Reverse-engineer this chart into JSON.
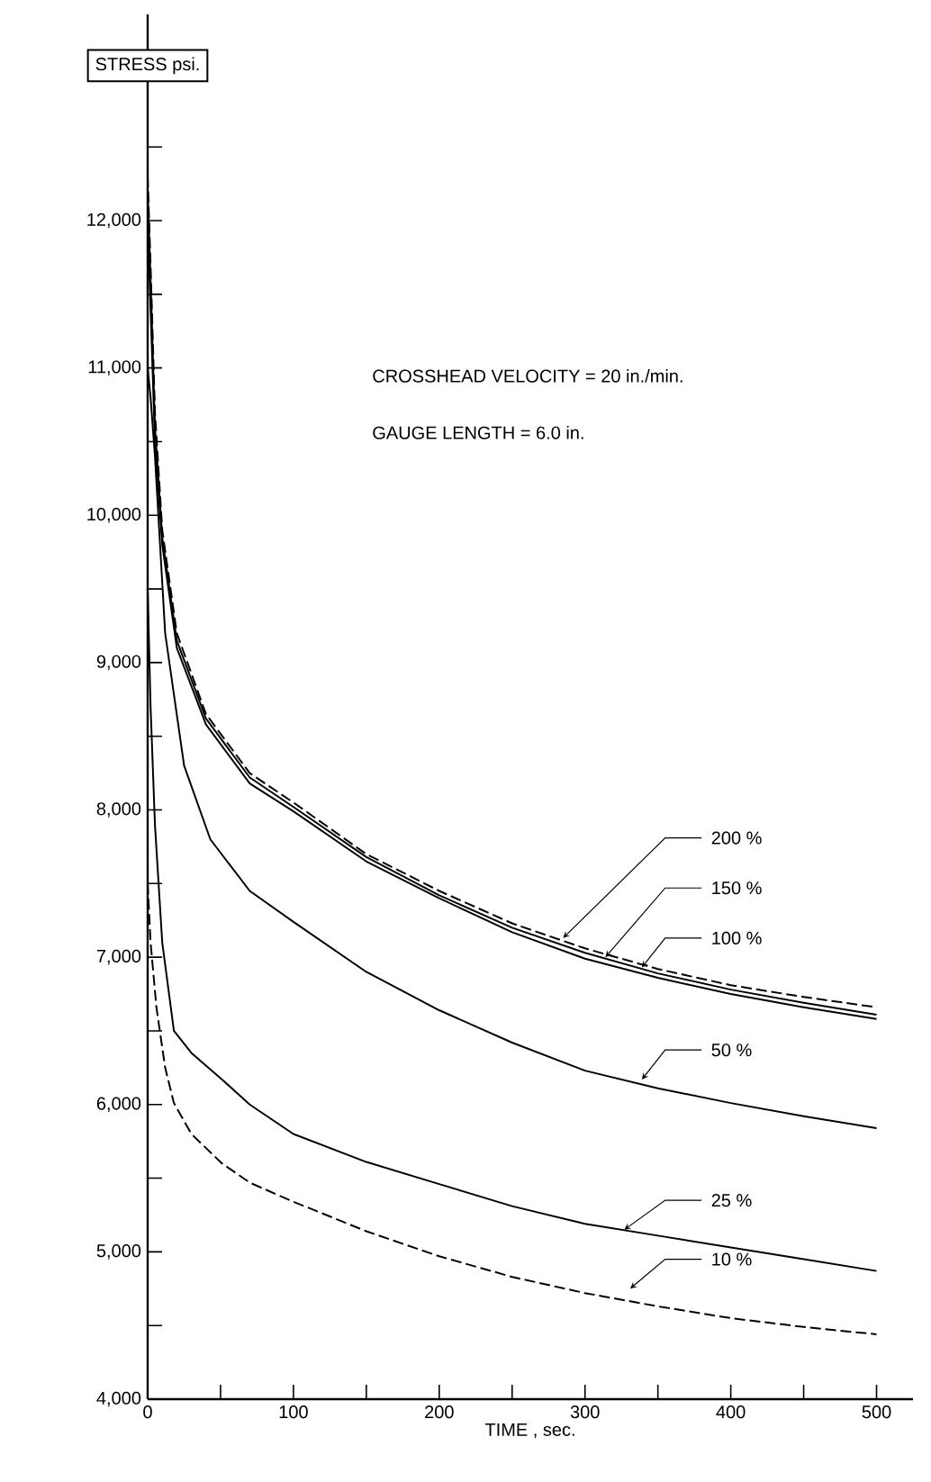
{
  "chart_data": {
    "type": "line",
    "xlabel": "TIME , sec.",
    "ylabel": "STRESS psi.",
    "xlim": [
      0,
      525
    ],
    "ylim": [
      4000,
      13400
    ],
    "xticks": [
      {
        "value": 0,
        "label": "0"
      },
      {
        "value": 50,
        "label": null
      },
      {
        "value": 100,
        "label": "100"
      },
      {
        "value": 150,
        "label": null
      },
      {
        "value": 200,
        "label": "200"
      },
      {
        "value": 250,
        "label": null
      },
      {
        "value": 300,
        "label": "300"
      },
      {
        "value": 350,
        "label": null
      },
      {
        "value": 400,
        "label": "400"
      },
      {
        "value": 450,
        "label": null
      },
      {
        "value": 500,
        "label": "500"
      }
    ],
    "yticks": [
      {
        "value": 4000,
        "label": "4,000"
      },
      {
        "value": 4500,
        "label": null
      },
      {
        "value": 5000,
        "label": "5,000"
      },
      {
        "value": 5500,
        "label": null
      },
      {
        "value": 6000,
        "label": "6,000"
      },
      {
        "value": 6500,
        "label": null
      },
      {
        "value": 7000,
        "label": "7,000"
      },
      {
        "value": 7500,
        "label": null
      },
      {
        "value": 8000,
        "label": "8,000"
      },
      {
        "value": 8500,
        "label": null
      },
      {
        "value": 9000,
        "label": "9,000"
      },
      {
        "value": 9500,
        "label": null
      },
      {
        "value": 10000,
        "label": "10,000"
      },
      {
        "value": 10500,
        "label": null
      },
      {
        "value": 11000,
        "label": "11,000"
      },
      {
        "value": 11500,
        "label": null
      },
      {
        "value": 12000,
        "label": "12,000"
      },
      {
        "value": 12500,
        "label": null
      }
    ],
    "grid": false,
    "series": [
      {
        "color": "#000000",
        "line_style": "dashed",
        "x": [
          0,
          2,
          5,
          10,
          20,
          40,
          70,
          100,
          150,
          200,
          250,
          300,
          350,
          400,
          450,
          500
        ],
        "values": [
          12300,
          11700,
          10700,
          9900,
          9200,
          8650,
          8250,
          8050,
          7700,
          7450,
          7230,
          7060,
          6920,
          6810,
          6730,
          6660
        ]
      },
      {
        "color": "#000000",
        "line_style": "solid",
        "x": [
          0,
          2,
          5,
          10,
          20,
          40,
          70,
          100,
          150,
          200,
          250,
          300,
          350,
          400,
          450,
          500
        ],
        "values": [
          12200,
          11600,
          10600,
          9850,
          9150,
          8620,
          8220,
          8020,
          7680,
          7420,
          7200,
          7030,
          6890,
          6780,
          6690,
          6610
        ]
      },
      {
        "color": "#000000",
        "line_style": "solid",
        "x": [
          0,
          2,
          5,
          10,
          20,
          40,
          70,
          100,
          150,
          200,
          250,
          300,
          350,
          400,
          450,
          500
        ],
        "values": [
          12000,
          11400,
          10500,
          9800,
          9100,
          8580,
          8180,
          7990,
          7650,
          7400,
          7170,
          6990,
          6860,
          6750,
          6660,
          6580
        ]
      },
      {
        "color": "#000000",
        "line_style": "solid",
        "x": [
          0,
          2,
          5,
          12,
          25,
          43,
          70,
          100,
          150,
          200,
          250,
          300,
          350,
          400,
          450,
          500
        ],
        "values": [
          11000,
          10800,
          10400,
          9200,
          8300,
          7800,
          7450,
          7240,
          6900,
          6640,
          6420,
          6230,
          6110,
          6010,
          5920,
          5840
        ]
      },
      {
        "color": "#000000",
        "line_style": "solid",
        "x": [
          0,
          2,
          5,
          10,
          18,
          30,
          51,
          70,
          100,
          150,
          200,
          250,
          300,
          350,
          400,
          450,
          500
        ],
        "values": [
          9500,
          8700,
          7900,
          7100,
          6500,
          6350,
          6170,
          6000,
          5800,
          5610,
          5460,
          5310,
          5190,
          5110,
          5030,
          4950,
          4870
        ]
      },
      {
        "color": "#000000",
        "line_style": "dashed",
        "x": [
          0,
          2,
          6,
          12,
          18,
          30,
          51,
          70,
          100,
          150,
          200,
          250,
          300,
          350,
          400,
          450,
          500
        ],
        "values": [
          7500,
          7100,
          6660,
          6250,
          6010,
          5800,
          5600,
          5470,
          5340,
          5140,
          4970,
          4830,
          4720,
          4630,
          4550,
          4490,
          4440
        ]
      }
    ],
    "annotations": [
      "CROSSHEAD VELOCITY = 20 in./min.",
      "GAUGE LENGTH = 6.0 in.",
      {
        "text": "200 %",
        "x": 285,
        "y": 7130
      },
      {
        "text": "150 %",
        "x": 314,
        "y": 7000
      },
      {
        "text": "100 %",
        "x": 339,
        "y": 6930
      },
      {
        "text": "50 %",
        "x": 339,
        "y": 6170
      },
      {
        "text": "25 %",
        "x": 327,
        "y": 5150
      },
      {
        "text": "10 %",
        "x": 331,
        "y": 4750
      }
    ]
  }
}
